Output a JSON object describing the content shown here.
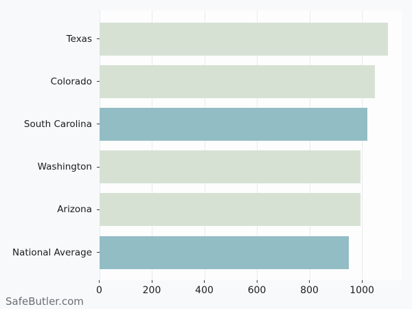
{
  "chart_data": {
    "type": "bar",
    "orientation": "horizontal",
    "title": "",
    "xlabel": "",
    "ylabel": "",
    "categories": [
      "Texas",
      "Colorado",
      "South Carolina",
      "Washington",
      "Arizona",
      "National Average"
    ],
    "values": [
      1100,
      1050,
      1020,
      995,
      995,
      950
    ],
    "bar_colors": [
      "#d6e1d3",
      "#d6e1d3",
      "#93bdc5",
      "#d6e1d3",
      "#d6e1d3",
      "#93bdc5"
    ],
    "default_color": "#d6e1d3",
    "highlight_color": "#93bdc5",
    "x_ticks": [
      0,
      200,
      400,
      600,
      800,
      1000
    ],
    "xlim": [
      0,
      1150
    ],
    "grid": true,
    "legend": false,
    "background_color": "#f8f9fb",
    "plot_background_color": "#fdfdfe",
    "gridline_color": "#e9eaec"
  },
  "watermark": {
    "text": "SafeButler.com"
  }
}
